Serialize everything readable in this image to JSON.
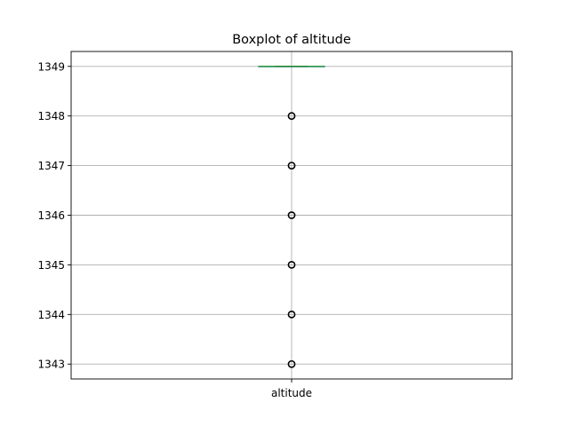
{
  "chart_data": {
    "type": "box",
    "title": "Boxplot of altitude",
    "xlabel": "",
    "ylabel": "",
    "categories": [
      "altitude"
    ],
    "ylim": [
      1342.7,
      1349.3
    ],
    "yticks": [
      1343,
      1344,
      1345,
      1346,
      1347,
      1348,
      1349
    ],
    "grid": true,
    "legend": "none",
    "series": [
      {
        "category": "altitude",
        "q1": 1349,
        "median": 1349,
        "q3": 1349,
        "whisker_low": 1349,
        "whisker_high": 1349,
        "outliers": [
          1343,
          1344,
          1345,
          1346,
          1347,
          1348
        ]
      }
    ],
    "colors": {
      "box": "#1f77b4",
      "median": "#2ca02c",
      "outlier": "#000000",
      "grid": "#b0b0b0",
      "axes": "#000000"
    }
  }
}
